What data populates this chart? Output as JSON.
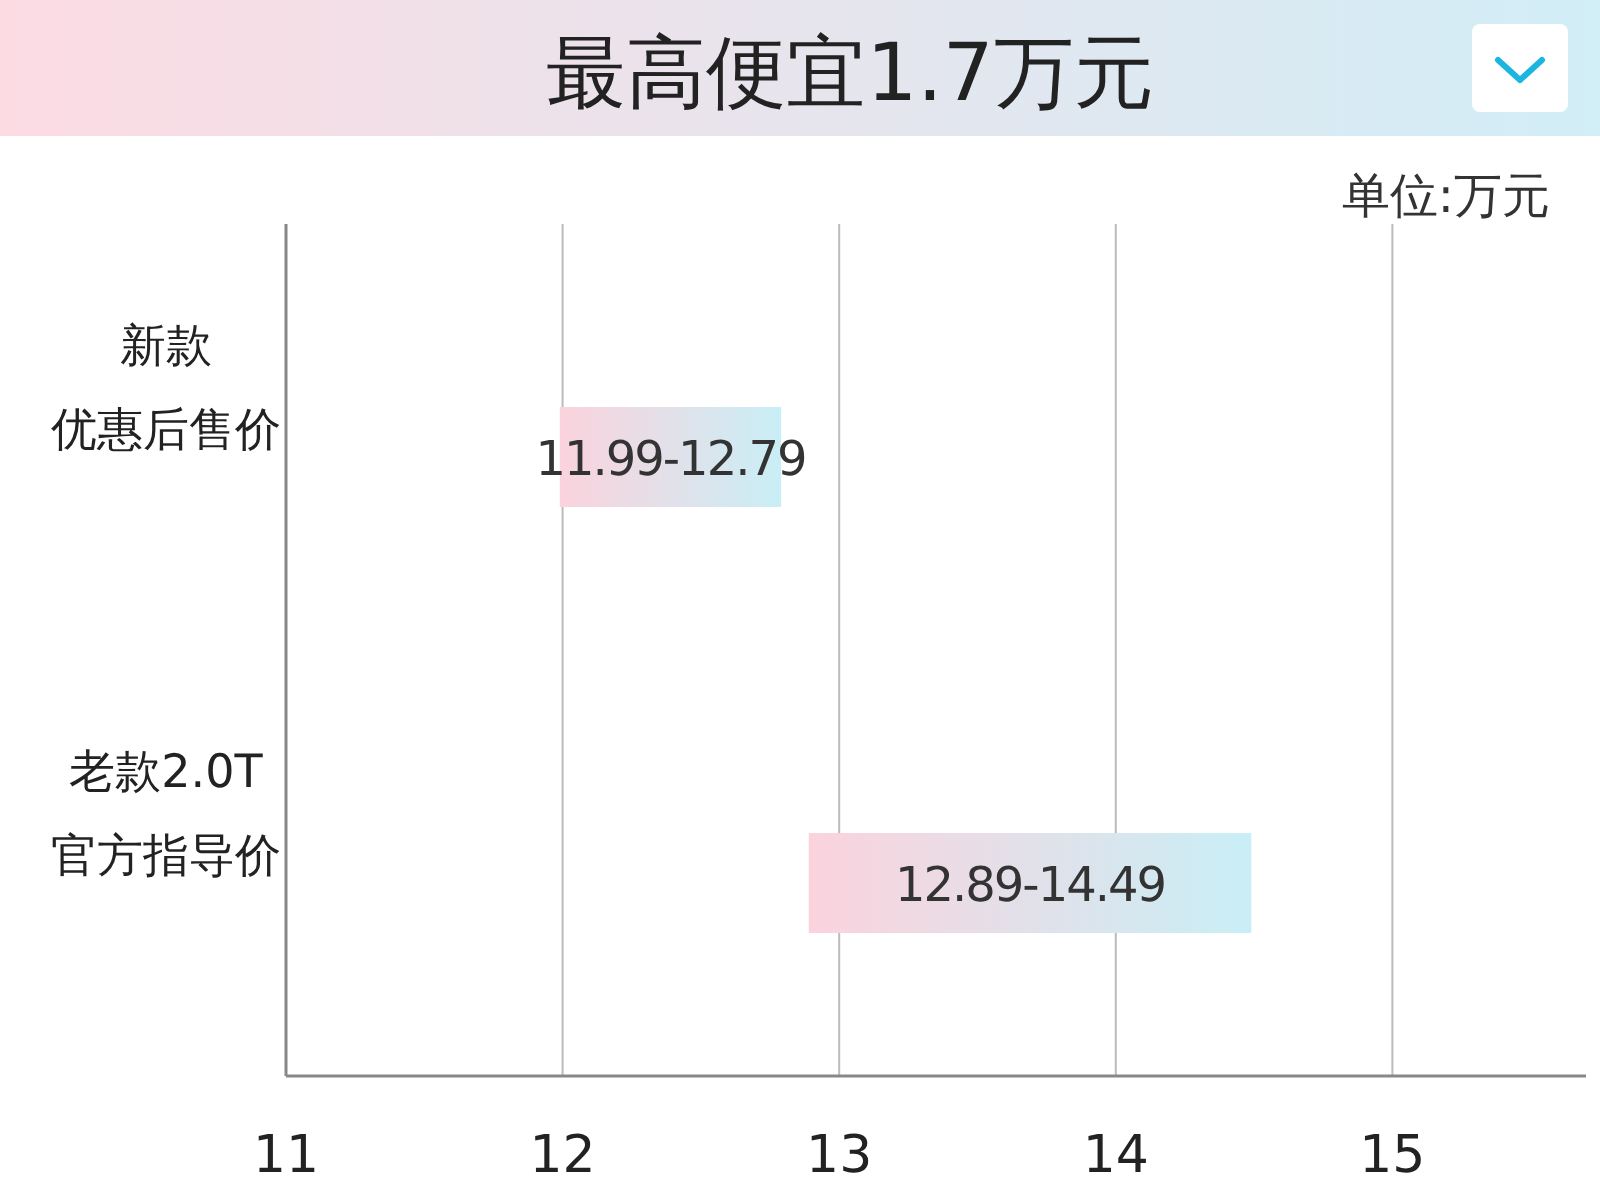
{
  "chart_data": {
    "type": "bar",
    "orientation": "horizontal",
    "title": "最高便宜1.7万元",
    "annotations": [
      "单位:万元"
    ],
    "categories": [
      "新款优惠后售价",
      "老款2.0T官方指导价"
    ],
    "values": [
      0.8,
      1.6
    ],
    "base": [
      11.99,
      12.89
    ],
    "value_labels": [
      "11.99-12.79",
      "12.89-14.49"
    ],
    "colors": [
      "#fbd3dd",
      "#fbd3dd"
    ],
    "xlim": [
      11,
      15.7
    ],
    "xticks": [
      11,
      12,
      13,
      14,
      15
    ],
    "grid": "x"
  }
}
